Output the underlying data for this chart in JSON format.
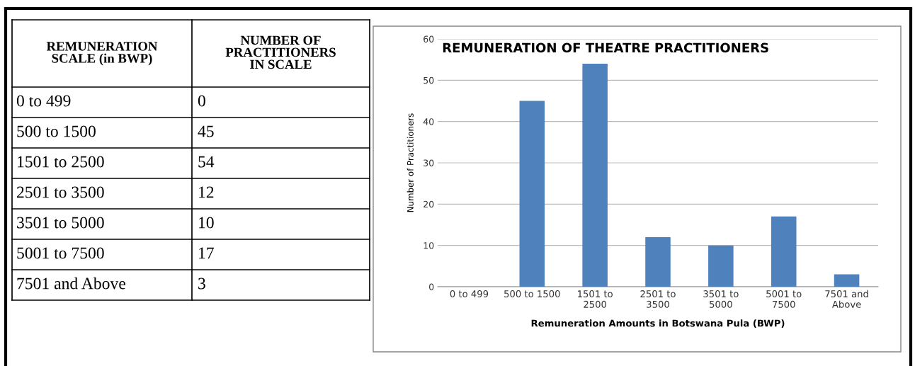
{
  "chart_data": [
    {
      "type": "other",
      "annotations": [
        "REMUNERATION SCALE (in BWP)",
        "NUMBER OF PRACTITIONERS IN SCALE"
      ],
      "value_labels": [
        "0",
        "45",
        "54",
        "12",
        "10",
        "17",
        "3"
      ],
      "categories": [
        "0 to 499",
        "500 to 1500",
        "1501 to 2500",
        "2501 to 3500",
        "3501 to 5000",
        "5001 to 7500",
        "7501 and Above"
      ],
      "values": [
        0,
        45,
        54,
        12,
        10,
        17,
        3
      ]
    },
    {
      "type": "bar",
      "title": "REMUNERATION OF THEATRE PRACTITIONERS",
      "xlabel": "Remuneration Amounts in Botswana Pula (BWP)",
      "ylabel": "Number of Practitioners",
      "categories": [
        "0 to 499",
        "500 to 1500",
        "1501 to 2500",
        "2501 to 3500",
        "3501 to 5000",
        "5001 to 7500",
        "7501 and Above"
      ],
      "values": [
        0,
        45,
        54,
        12,
        10,
        17,
        3
      ],
      "color": "#4f81bd",
      "ylim": [
        0,
        60
      ],
      "yticks": [
        0,
        10,
        20,
        30,
        40,
        50,
        60
      ],
      "grid": "y"
    }
  ]
}
